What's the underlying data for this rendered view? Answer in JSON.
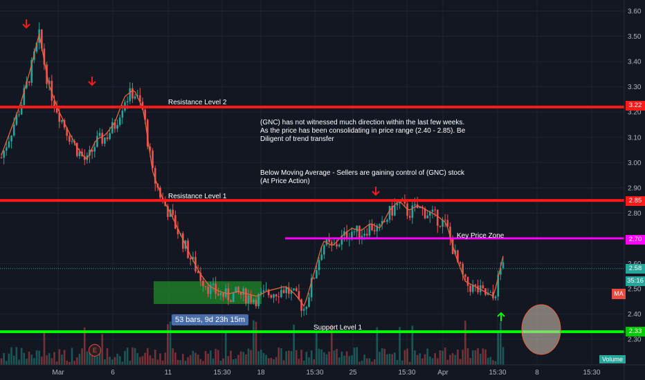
{
  "chart_data": {
    "type": "candlestick",
    "ticker": "GNC",
    "ylim": [
      2.25,
      3.63
    ],
    "y_ticks": [
      "3.60",
      "3.50",
      "3.40",
      "3.30",
      "3.20",
      "3.10",
      "3.00",
      "2.90",
      "2.80",
      "2.60",
      "2.50",
      "2.40",
      "2.30"
    ],
    "x_ticks": [
      "Mar",
      "6",
      "11",
      "15:30",
      "18",
      "15:30",
      "25",
      "15:30",
      "Apr",
      "15:30",
      "8",
      "15:30"
    ],
    "levels": [
      {
        "name": "Resistance Level 2",
        "value": 3.22,
        "label": "3.22",
        "color": "#ff1a1a"
      },
      {
        "name": "Resistance Level 1",
        "value": 2.85,
        "label": "2.85",
        "color": "#ff1a1a"
      },
      {
        "name": "Key Price Zone",
        "value": 2.7,
        "label": "2.70",
        "color": "#ff00ff"
      },
      {
        "name": "Support Level 1",
        "value": 2.33,
        "label": "2.33",
        "color": "#00ff00"
      }
    ],
    "current_price": {
      "value": 2.58,
      "label": "2.58",
      "countdown": "35:16"
    },
    "series": [
      {
        "name": "MA",
        "close_approx": [
          3.02,
          3.12,
          3.22,
          3.35,
          3.5,
          3.3,
          3.2,
          3.12,
          3.05,
          3.0,
          3.08,
          3.1,
          3.15,
          3.25,
          3.28,
          3.2,
          2.95,
          2.85,
          2.78,
          2.7,
          2.62,
          2.55,
          2.5,
          2.48,
          2.47,
          2.48,
          2.47,
          2.46,
          2.48,
          2.49,
          2.5,
          2.47,
          2.42,
          2.55,
          2.68,
          2.66,
          2.7,
          2.73,
          2.72,
          2.75,
          2.73,
          2.8,
          2.84,
          2.8,
          2.82,
          2.8,
          2.78,
          2.75,
          2.62,
          2.52,
          2.5,
          2.48,
          2.46,
          2.62
        ]
      }
    ],
    "annotations": [
      "(GNC) has not witnessed much direction within the last few weeks. As the price has been consolidating in price range (2.40 - 2.85). Be Diligent of trend transfer",
      "Below Moving Average - Sellers are gaining control of (GNC) stock (At Price Action)"
    ],
    "measure_label": "53 bars, 9d 23h 15m",
    "indicator_badge": "MA",
    "volume_badge": "Volume",
    "earnings_badge": "E",
    "colors": {
      "up": "#26a69a",
      "down": "#ef5350",
      "ma": "#e8643c",
      "background": "#131722"
    }
  }
}
